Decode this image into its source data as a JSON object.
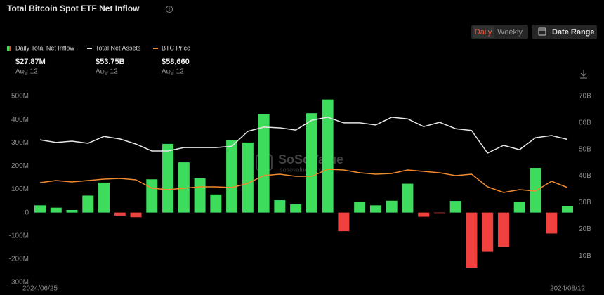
{
  "chart_data": {
    "type": "bar",
    "title": "Total Bitcoin Spot ETF Net Inflow",
    "controls": {
      "daily": "Daily",
      "weekly": "Weekly",
      "date_range": "Date Range"
    },
    "watermark": {
      "brand": "SoSoValue",
      "site": "sosovalue.com"
    },
    "categories": [
      "2024/06/25",
      null,
      null,
      null,
      null,
      null,
      null,
      null,
      null,
      null,
      null,
      null,
      null,
      null,
      null,
      null,
      null,
      null,
      null,
      null,
      null,
      null,
      null,
      null,
      null,
      null,
      null,
      null,
      null,
      null,
      null,
      null,
      null,
      "2024/08/12"
    ],
    "series": [
      {
        "name": "Daily Total Net Inflow",
        "type": "bar",
        "axis": "y",
        "color": "#3ddc5c",
        "negative_color": "#f0413f",
        "values": [
          31,
          21,
          11,
          73,
          129,
          -13,
          -20,
          143,
          295,
          216,
          147,
          78,
          310,
          301,
          422,
          53,
          35,
          427,
          486,
          -80,
          45,
          31,
          51,
          124,
          -18,
          -2,
          50,
          -237,
          -169,
          -148,
          45,
          192,
          -90,
          27.87
        ]
      },
      {
        "name": "Total Net Assets",
        "type": "line",
        "axis": "y2",
        "color": "#e6e6e6",
        "values": [
          53.6,
          52.6,
          53.1,
          52.3,
          54.9,
          53.9,
          52.0,
          49.4,
          49.4,
          50.7,
          50.7,
          50.7,
          51.2,
          56.8,
          58.4,
          58.1,
          57.3,
          61.0,
          62.1,
          60.0,
          60.0,
          59.2,
          62.1,
          61.5,
          58.6,
          60.2,
          57.8,
          57.1,
          48.6,
          51.5,
          49.9,
          54.4,
          55.2,
          53.75
        ]
      },
      {
        "name": "BTC Price",
        "type": "line",
        "axis": "y3",
        "color": "#f08a30",
        "values": [
          62000,
          63400,
          62450,
          63400,
          64340,
          64810,
          63870,
          58210,
          57260,
          58210,
          59150,
          59150,
          58680,
          61510,
          66700,
          67640,
          66230,
          66230,
          70940,
          70470,
          68590,
          67640,
          68110,
          70470,
          69530,
          68590,
          66700,
          67640,
          59150,
          55380,
          57260,
          56320,
          62920,
          58660
        ]
      }
    ],
    "legend_values": [
      {
        "value": "$27.87M",
        "date": "Aug 12"
      },
      {
        "value": "$53.75B",
        "date": "Aug 12"
      },
      {
        "value": "$58,660",
        "date": "Aug 12"
      }
    ],
    "ylim": [
      -300,
      500
    ],
    "yticks": [
      {
        "value": 500,
        "label": "500M"
      },
      {
        "value": 400,
        "label": "400M"
      },
      {
        "value": 300,
        "label": "300M"
      },
      {
        "value": 200,
        "label": "200M"
      },
      {
        "value": 100,
        "label": "100M"
      },
      0,
      {
        "value": -100,
        "label": "-100M"
      },
      {
        "value": -200,
        "label": "-200M"
      },
      {
        "value": -300,
        "label": "-300M"
      }
    ],
    "y2lim": [
      0,
      70
    ],
    "y2ticks": [
      {
        "value": 70,
        "label": "70B"
      },
      {
        "value": 60,
        "label": "60B"
      },
      {
        "value": 50,
        "label": "50B"
      },
      {
        "value": 40,
        "label": "40B"
      },
      {
        "value": 30,
        "label": "30B"
      },
      {
        "value": 20,
        "label": "20B"
      },
      {
        "value": 10,
        "label": "10B"
      }
    ],
    "y3lim": [
      -5000,
      120000
    ],
    "grid": false
  }
}
